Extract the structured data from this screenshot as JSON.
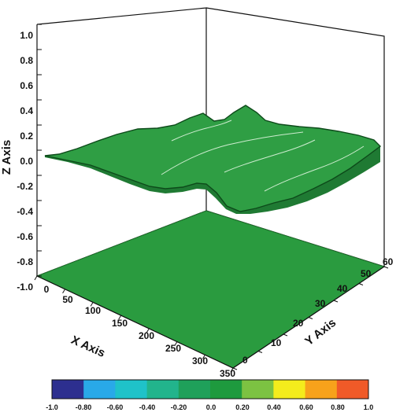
{
  "chart_data": {
    "type": "surface3d",
    "title": "",
    "xlabel": "X Axis",
    "ylabel": "Y Axis",
    "zlabel": "Z Axis",
    "xlim": [
      0,
      350
    ],
    "ylim": [
      0,
      60
    ],
    "zlim": [
      -1.0,
      1.0
    ],
    "x_ticks": [
      "0",
      "50",
      "100",
      "150",
      "200",
      "250",
      "300",
      "350"
    ],
    "y_ticks": [
      "0",
      "10",
      "20",
      "30",
      "40",
      "50",
      "60"
    ],
    "z_ticks": [
      "-1.0",
      "-0.8",
      "-0.6",
      "-0.4",
      "-0.2",
      "0.0",
      "0.2",
      "0.4",
      "0.6",
      "0.8",
      "1.0"
    ],
    "surface_z_range": [
      -0.2,
      0.3
    ],
    "floor_plane_z": -1.0,
    "surface_color": "#2f9e44",
    "floor_color": "#2a9b3f",
    "colorbar": {
      "ticks": [
        "-1.0",
        "-0.80",
        "-0.60",
        "-0.40",
        "-0.20",
        "0.0",
        "0.20",
        "0.40",
        "0.60",
        "0.80",
        "1.0"
      ],
      "colors": [
        "#2d2f8f",
        "#29a9e8",
        "#1fc2c9",
        "#22b48c",
        "#1fa05a",
        "#1e9a3e",
        "#7cc242",
        "#f4ec1c",
        "#f7a21b",
        "#f05a28"
      ]
    }
  }
}
